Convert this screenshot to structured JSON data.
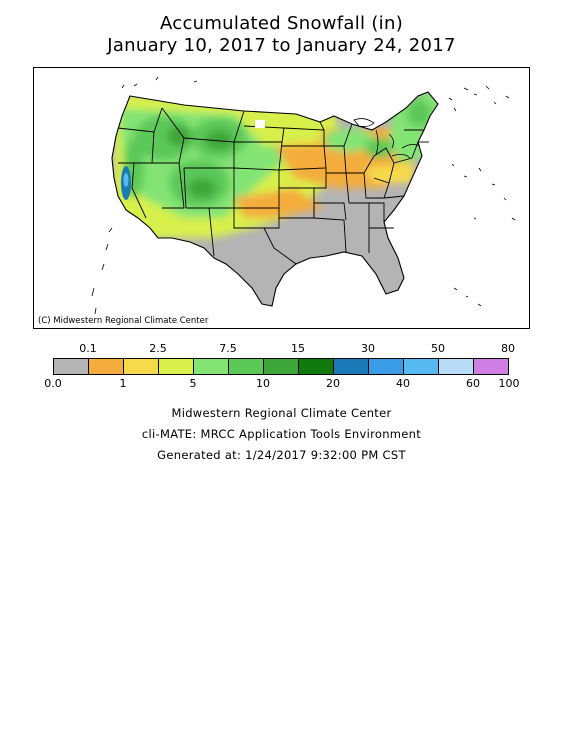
{
  "title_line1": "Accumulated Snowfall (in)",
  "title_line2": "January 10, 2017 to January 24, 2017",
  "copyright": "(C) Midwestern Regional Climate Center",
  "legend": {
    "upper_labels": [
      "0.1",
      "2.5",
      "7.5",
      "15",
      "30",
      "50",
      "80"
    ],
    "lower_labels": [
      "0.0",
      "1",
      "5",
      "10",
      "20",
      "40",
      "60",
      "100"
    ],
    "colors": [
      "#b4b4b4",
      "#f4ad3d",
      "#f6da4b",
      "#d8f04c",
      "#83e474",
      "#5cc858",
      "#3fa63b",
      "#117a0f",
      "#1c79b8",
      "#3a9de5",
      "#56b9ef",
      "#b9dcf8",
      "#cf7fe3"
    ]
  },
  "footer": {
    "line1": "Midwestern Regional Climate Center",
    "line2": "cli-MATE: MRCC Application Tools Environment",
    "line3": "Generated at: 1/24/2017 9:32:00 PM CST"
  },
  "colors": {
    "none": "#b4b4b4",
    "light": "#f4ad3d",
    "moderate": "#d8f04c",
    "heavy": "#5cc858",
    "very_heavy": "#117a0f",
    "extreme": "#3a9de5"
  }
}
